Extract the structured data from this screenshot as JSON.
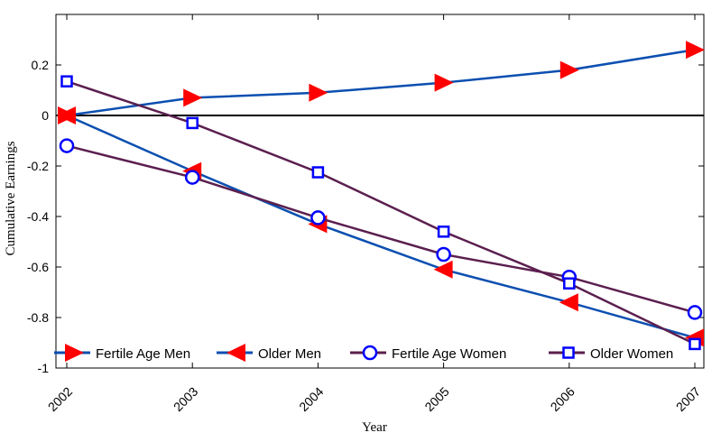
{
  "chart_data": {
    "type": "line",
    "title": "",
    "xlabel": "Year",
    "ylabel": "Cumulative Earnings",
    "x": [
      2002,
      2003,
      2004,
      2005,
      2006,
      2007
    ],
    "x_tick_labels": [
      "2002",
      "2003",
      "2004",
      "2005",
      "2006",
      "2007"
    ],
    "y_tick_labels": [
      "0.2",
      "0",
      "-0.2",
      "-0.4",
      "-0.6",
      "-0.8",
      "-1"
    ],
    "y_ticks": [
      0.2,
      0,
      -0.2,
      -0.4,
      -0.6,
      -0.8,
      -1
    ],
    "xlim": [
      2002,
      2007
    ],
    "ylim": [
      -1,
      0.4
    ],
    "grid": false,
    "zero_line": true,
    "legend_position": "bottom",
    "series": [
      {
        "name": "Fertile Age Men",
        "color": "#0b4fb0",
        "marker": "triangle-right",
        "marker_color": "#ff0000",
        "values": [
          0.0,
          0.07,
          0.09,
          0.13,
          0.18,
          0.26
        ]
      },
      {
        "name": "Older Men",
        "color": "#0b4fb0",
        "marker": "triangle-left",
        "marker_color": "#ff0000",
        "values": [
          0.0,
          -0.22,
          -0.43,
          -0.61,
          -0.74,
          -0.88
        ]
      },
      {
        "name": "Fertile Age Women",
        "color": "#5b1f4f",
        "marker": "circle",
        "marker_color": "#0000ff",
        "values": [
          -0.12,
          -0.245,
          -0.405,
          -0.55,
          -0.64,
          -0.78
        ]
      },
      {
        "name": "Older Women",
        "color": "#5b1f4f",
        "marker": "square",
        "marker_color": "#0000ff",
        "values": [
          0.135,
          -0.03,
          -0.225,
          -0.46,
          -0.665,
          -0.905
        ]
      }
    ]
  }
}
